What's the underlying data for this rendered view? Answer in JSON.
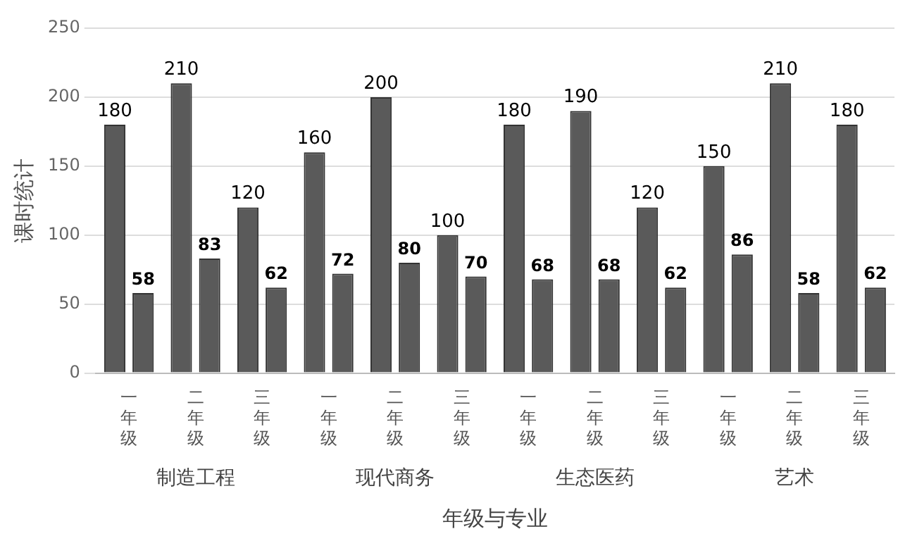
{
  "chart_data": {
    "type": "bar",
    "ylabel": "课时统计",
    "xlabel": "年级与专业",
    "categories": [
      "一年级",
      "二年级",
      "三年级",
      "一年级",
      "二年级",
      "三年级",
      "一年级",
      "二年级",
      "三年级",
      "一年级",
      "二年级",
      "三年级"
    ],
    "series": [
      {
        "color": "#5a5a5a",
        "values": [
          180,
          210,
          120,
          160,
          200,
          100,
          180,
          190,
          120,
          150,
          210,
          180
        ]
      },
      {
        "color": "#5a5a5a",
        "values": [
          58,
          83,
          62,
          72,
          80,
          70,
          68,
          68,
          62,
          86,
          58,
          62
        ]
      }
    ],
    "annotations": [
      "制造工程",
      "现代商务",
      "生态医药",
      "艺术"
    ],
    "ylim": [
      0,
      250
    ],
    "yticks": [
      0,
      50,
      100,
      150,
      200,
      250
    ],
    "grid": "y",
    "data_labels": true,
    "legend": false
  }
}
